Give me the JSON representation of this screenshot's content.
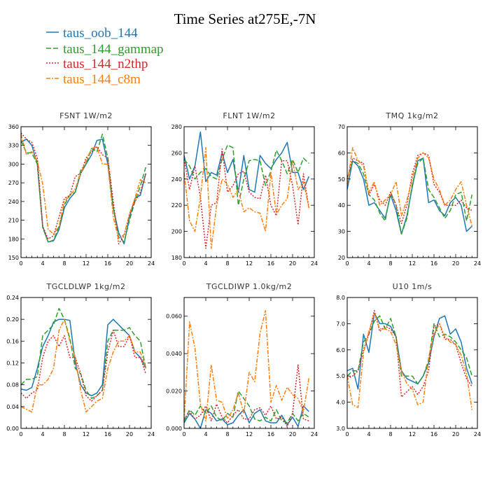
{
  "title": "Time Series at275E,-7N",
  "legend": [
    {
      "name": "taus_oob_144",
      "color": "#1f77b4",
      "dash": ""
    },
    {
      "name": "taus_144_gammap",
      "color": "#2ca02c",
      "dash": "7 3"
    },
    {
      "name": "taus_144_n2thp",
      "color": "#d62728",
      "dash": "2 2"
    },
    {
      "name": "taus_144_c8m",
      "color": "#ff7f0e",
      "dash": "6 2 2 2"
    }
  ],
  "chart_data": [
    {
      "type": "line",
      "title": "FSNT   1W/m2",
      "xlim": [
        0,
        24
      ],
      "ylim": [
        150,
        360
      ],
      "xticks": [
        0,
        4,
        8,
        12,
        16,
        20,
        24
      ],
      "yticks": [
        150,
        180,
        210,
        240,
        270,
        300,
        330,
        360
      ],
      "ytick_labels": [
        "150",
        "180",
        "210",
        "240",
        "270",
        "300",
        "330",
        "360"
      ],
      "x": [
        0,
        1,
        2,
        3,
        4,
        5,
        6,
        7,
        8,
        9,
        10,
        11,
        12,
        13,
        14,
        15,
        16,
        17,
        18,
        19,
        20,
        21,
        22,
        23
      ],
      "series": [
        {
          "name": "taus_oob_144",
          "values": [
            335,
            340,
            330,
            300,
            200,
            175,
            177,
            195,
            230,
            245,
            255,
            285,
            300,
            315,
            338,
            340,
            300,
            230,
            190,
            172,
            215,
            245,
            250,
            285
          ]
        },
        {
          "name": "taus_144_gammap",
          "values": [
            338,
            318,
            318,
            300,
            198,
            175,
            178,
            200,
            235,
            250,
            255,
            290,
            300,
            325,
            320,
            348,
            310,
            230,
            183,
            175,
            210,
            240,
            265,
            295
          ]
        },
        {
          "name": "taus_144_n2thp",
          "values": [
            350,
            340,
            335,
            310,
            200,
            180,
            185,
            215,
            245,
            250,
            280,
            285,
            310,
            320,
            328,
            315,
            310,
            240,
            172,
            185,
            220,
            240,
            255,
            285
          ]
        },
        {
          "name": "taus_144_c8m",
          "values": [
            348,
            315,
            320,
            305,
            268,
            195,
            188,
            200,
            240,
            250,
            260,
            285,
            305,
            325,
            328,
            300,
            300,
            215,
            180,
            187,
            220,
            245,
            275,
            270
          ]
        }
      ]
    },
    {
      "type": "line",
      "title": "FLNT   1W/m2",
      "xlim": [
        0,
        24
      ],
      "ylim": [
        180,
        280
      ],
      "xticks": [
        0,
        4,
        8,
        12,
        16,
        20,
        24
      ],
      "yticks": [
        180,
        200,
        220,
        240,
        260,
        280
      ],
      "ytick_labels": [
        "180",
        "200",
        "220",
        "240",
        "260",
        "280"
      ],
      "x": [
        0,
        1,
        2,
        3,
        4,
        5,
        6,
        7,
        8,
        9,
        10,
        11,
        12,
        13,
        14,
        15,
        16,
        17,
        18,
        19,
        20,
        21,
        22,
        23
      ],
      "series": [
        {
          "name": "taus_oob_144",
          "values": [
            258,
            240,
            250,
            276,
            238,
            245,
            243,
            260,
            245,
            255,
            230,
            258,
            232,
            230,
            258,
            252,
            248,
            255,
            260,
            268,
            245,
            245,
            232,
            242
          ]
        },
        {
          "name": "taus_144_gammap",
          "values": [
            255,
            250,
            240,
            245,
            248,
            242,
            240,
            255,
            266,
            264,
            220,
            240,
            254,
            255,
            254,
            235,
            246,
            262,
            254,
            244,
            255,
            245,
            256,
            252
          ]
        },
        {
          "name": "taus_144_n2thp",
          "values": [
            255,
            232,
            250,
            226,
            187,
            220,
            222,
            263,
            230,
            235,
            244,
            246,
            230,
            226,
            225,
            243,
            220,
            212,
            254,
            254,
            235,
            205,
            244,
            218
          ]
        },
        {
          "name": "taus_144_c8m",
          "values": [
            245,
            208,
            200,
            226,
            264,
            187,
            220,
            240,
            236,
            226,
            232,
            215,
            218,
            215,
            214,
            200,
            245,
            213,
            220,
            225,
            254,
            232,
            238,
            218
          ]
        }
      ]
    },
    {
      "type": "line",
      "title": "TMQ   1kg/m2",
      "xlim": [
        0,
        24
      ],
      "ylim": [
        20,
        70
      ],
      "xticks": [
        0,
        4,
        8,
        12,
        16,
        20,
        24
      ],
      "yticks": [
        20,
        30,
        40,
        50,
        60,
        70
      ],
      "ytick_labels": [
        "20",
        "30",
        "40",
        "50",
        "60",
        "70"
      ],
      "x": [
        0,
        1,
        2,
        3,
        4,
        5,
        6,
        7,
        8,
        9,
        10,
        11,
        12,
        13,
        14,
        15,
        16,
        17,
        18,
        19,
        20,
        21,
        22,
        23
      ],
      "series": [
        {
          "name": "taus_oob_144",
          "values": [
            46,
            57,
            55,
            50,
            40,
            41,
            38,
            35,
            44,
            38,
            29,
            36,
            47,
            57,
            58,
            41,
            42,
            38,
            36,
            41,
            43,
            40,
            30,
            32
          ]
        },
        {
          "name": "taus_144_gammap",
          "values": [
            50,
            57,
            56,
            52,
            44,
            42,
            37,
            34,
            45,
            40,
            29,
            35,
            48,
            56,
            58,
            46,
            43,
            39,
            35,
            38,
            44,
            45,
            34,
            44
          ]
        },
        {
          "name": "taus_144_n2thp",
          "values": [
            50,
            58,
            57,
            56,
            44,
            48,
            42,
            40,
            45,
            40,
            33,
            40,
            52,
            59,
            60,
            59,
            48,
            45,
            40,
            40,
            40,
            42,
            39,
            38
          ]
        },
        {
          "name": "taus_144_c8m",
          "values": [
            48,
            62,
            57,
            55,
            45,
            49,
            40,
            42,
            44,
            49,
            36,
            42,
            50,
            58,
            60,
            58,
            50,
            46,
            40,
            42,
            46,
            49,
            40,
            32
          ]
        }
      ]
    },
    {
      "type": "line",
      "title": "TGCLDLWP   1kg/m2",
      "xlim": [
        0,
        24
      ],
      "ylim": [
        0,
        0.24
      ],
      "xticks": [
        0,
        4,
        8,
        12,
        16,
        20,
        24
      ],
      "yticks": [
        0,
        0.04,
        0.08,
        0.12,
        0.16,
        0.2,
        0.24
      ],
      "ytick_labels": [
        "0.00",
        "0.04",
        "0.08",
        "0.12",
        "0.16",
        "0.20",
        "0.24"
      ],
      "x": [
        0,
        1,
        2,
        3,
        4,
        5,
        6,
        7,
        8,
        9,
        10,
        11,
        12,
        13,
        14,
        15,
        16,
        17,
        18,
        19,
        20,
        21,
        22,
        23
      ],
      "series": [
        {
          "name": "taus_oob_144",
          "values": [
            0.072,
            0.07,
            0.075,
            0.11,
            0.15,
            0.17,
            0.195,
            0.2,
            0.2,
            0.198,
            0.12,
            0.08,
            0.065,
            0.06,
            0.065,
            0.08,
            0.19,
            0.2,
            0.19,
            0.18,
            0.17,
            0.14,
            0.13,
            0.11
          ]
        },
        {
          "name": "taus_144_gammap",
          "values": [
            0.08,
            0.09,
            0.09,
            0.095,
            0.17,
            0.18,
            0.19,
            0.22,
            0.2,
            0.165,
            0.11,
            0.1,
            0.07,
            0.055,
            0.06,
            0.07,
            0.16,
            0.18,
            0.18,
            0.18,
            0.185,
            0.17,
            0.16,
            0.11
          ]
        },
        {
          "name": "taus_144_n2thp",
          "values": [
            0.065,
            0.055,
            0.065,
            0.07,
            0.13,
            0.16,
            0.17,
            0.15,
            0.17,
            0.13,
            0.13,
            0.1,
            0.06,
            0.05,
            0.06,
            0.07,
            0.14,
            0.18,
            0.15,
            0.15,
            0.17,
            0.13,
            0.13,
            0.1
          ]
        },
        {
          "name": "taus_144_c8m",
          "values": [
            0.04,
            0.035,
            0.03,
            0.08,
            0.08,
            0.09,
            0.11,
            0.18,
            0.2,
            0.16,
            0.13,
            0.07,
            0.03,
            0.04,
            0.05,
            0.055,
            0.11,
            0.14,
            0.16,
            0.16,
            0.17,
            0.14,
            0.14,
            0.11
          ]
        }
      ]
    },
    {
      "type": "line",
      "title": "TGCLDIWP   1.0kg/m2",
      "xlim": [
        0,
        24
      ],
      "ylim": [
        0,
        0.07
      ],
      "xticks": [
        0,
        4,
        8,
        12,
        16,
        20,
        24
      ],
      "yticks": [
        0,
        0.02,
        0.04,
        0.06
      ],
      "ytick_labels": [
        "0.000",
        "0.020",
        "0.040",
        "0.060"
      ],
      "x": [
        0,
        1,
        2,
        3,
        4,
        5,
        6,
        7,
        8,
        9,
        10,
        11,
        12,
        13,
        14,
        15,
        16,
        17,
        18,
        19,
        20,
        21,
        22,
        23
      ],
      "series": [
        {
          "name": "taus_oob_144",
          "values": [
            0.003,
            0.008,
            0.005,
            0.0,
            0.01,
            0.008,
            0.004,
            0.005,
            0.002,
            0.003,
            0.007,
            0.01,
            0.003,
            0.008,
            0.01,
            0.004,
            0.003,
            0.003,
            0.007,
            0.002,
            0.006,
            0.001,
            0.012,
            0.009
          ]
        },
        {
          "name": "taus_144_gammap",
          "values": [
            0.004,
            0.01,
            0.007,
            0.012,
            0.008,
            0.012,
            0.006,
            0.004,
            0.008,
            0.006,
            0.02,
            0.016,
            0.012,
            0.005,
            0.004,
            0.006,
            0.004,
            0.01,
            0.004,
            0.003,
            0.008,
            0.004,
            0.008,
            0.006
          ]
        },
        {
          "name": "taus_144_n2thp",
          "values": [
            0.005,
            0.009,
            0.005,
            0.007,
            0.012,
            0.004,
            0.013,
            0.006,
            0.003,
            0.007,
            0.01,
            0.005,
            0.005,
            0.01,
            0.011,
            0.007,
            0.012,
            0.005,
            0.006,
            0.001,
            0.008,
            0.034,
            0.005,
            0.004
          ]
        },
        {
          "name": "taus_144_c8m",
          "values": [
            0.004,
            0.057,
            0.043,
            0.013,
            0.004,
            0.034,
            0.015,
            0.014,
            0.005,
            0.01,
            0.019,
            0.008,
            0.03,
            0.025,
            0.051,
            0.063,
            0.014,
            0.023,
            0.015,
            0.022,
            0.018,
            0.016,
            0.009,
            0.027
          ]
        }
      ]
    },
    {
      "type": "line",
      "title": "U10   1m/s",
      "xlim": [
        0,
        24
      ],
      "ylim": [
        3,
        8
      ],
      "xticks": [
        0,
        4,
        8,
        12,
        16,
        20,
        24
      ],
      "yticks": [
        3,
        4,
        5,
        6,
        7,
        8
      ],
      "ytick_labels": [
        "3.0",
        "4.0",
        "5.0",
        "6.0",
        "7.0",
        "8.0"
      ],
      "x": [
        0,
        1,
        2,
        3,
        4,
        5,
        6,
        7,
        8,
        9,
        10,
        11,
        12,
        13,
        14,
        15,
        16,
        17,
        18,
        19,
        20,
        21,
        22,
        23
      ],
      "series": [
        {
          "name": "taus_oob_144",
          "values": [
            5.2,
            5.3,
            4.5,
            6.6,
            5.9,
            7.4,
            7.0,
            7.0,
            6.9,
            6.5,
            5.2,
            4.9,
            4.8,
            4.7,
            5.0,
            5.5,
            6.5,
            7.2,
            7.3,
            6.6,
            6.8,
            6.3,
            5.3,
            4.7
          ]
        },
        {
          "name": "taus_144_gammap",
          "values": [
            5.0,
            5.2,
            5.2,
            6.3,
            6.6,
            7.1,
            7.3,
            6.8,
            7.2,
            6.5,
            5.0,
            5.0,
            5.0,
            4.7,
            5.0,
            5.6,
            7.0,
            6.5,
            6.6,
            6.5,
            6.3,
            6.0,
            5.7,
            5.0
          ]
        },
        {
          "name": "taus_144_n2thp",
          "values": [
            4.9,
            5.0,
            5.2,
            6.0,
            6.6,
            7.5,
            6.7,
            6.9,
            6.8,
            6.5,
            4.2,
            4.4,
            4.6,
            4.3,
            4.6,
            5.2,
            6.9,
            7.0,
            6.4,
            6.4,
            6.2,
            5.5,
            4.9,
            4.6
          ]
        },
        {
          "name": "taus_144_c8m",
          "values": [
            5.0,
            3.9,
            3.8,
            5.9,
            6.7,
            7.4,
            6.8,
            6.8,
            6.7,
            6.2,
            5.2,
            4.7,
            4.5,
            3.9,
            4.0,
            5.7,
            6.6,
            7.0,
            6.5,
            6.3,
            6.2,
            5.8,
            5.1,
            3.7
          ]
        }
      ]
    }
  ]
}
